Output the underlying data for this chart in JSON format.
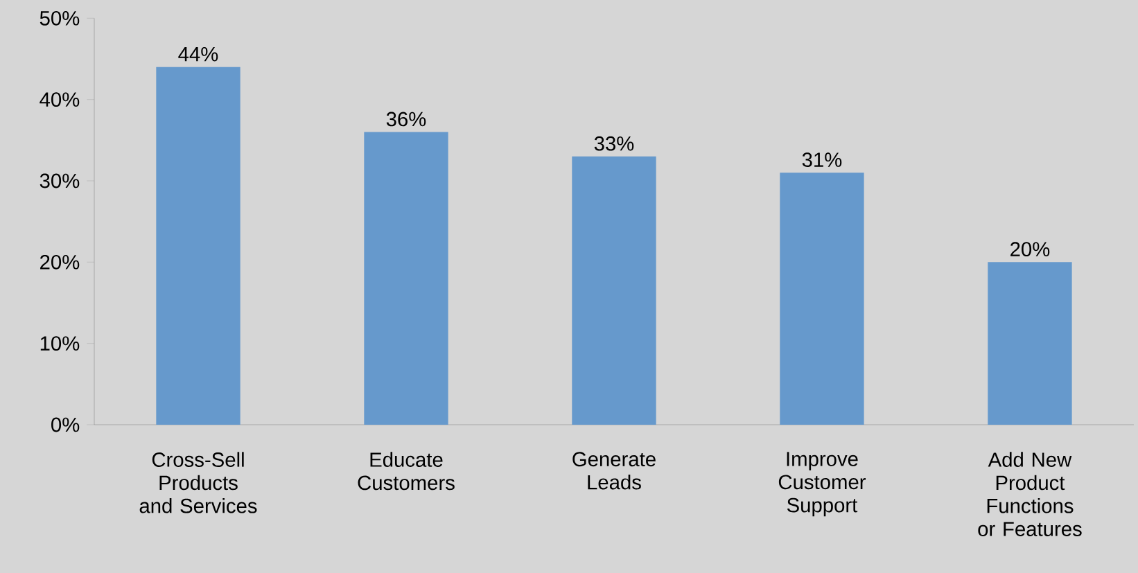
{
  "chart_data": {
    "type": "bar",
    "categories": [
      "Cross-Sell Products and Services",
      "Educate Customers",
      "Generate Leads",
      "Improve Customer Support",
      "Add New Product Functions or Features"
    ],
    "values": [
      44,
      36,
      33,
      31,
      20
    ],
    "value_labels": [
      "44%",
      "36%",
      "33%",
      "31%",
      "20%"
    ],
    "color": "#6699cc",
    "ylim": [
      0,
      50
    ],
    "yticks": [
      {
        "value": 0,
        "label": "0%"
      },
      {
        "value": 10,
        "label": "10%"
      },
      {
        "value": 20,
        "label": "20%"
      },
      {
        "value": 30,
        "label": "30%"
      },
      {
        "value": 40,
        "label": "40%"
      },
      {
        "value": 50,
        "label": "50%"
      }
    ],
    "grid": false
  }
}
